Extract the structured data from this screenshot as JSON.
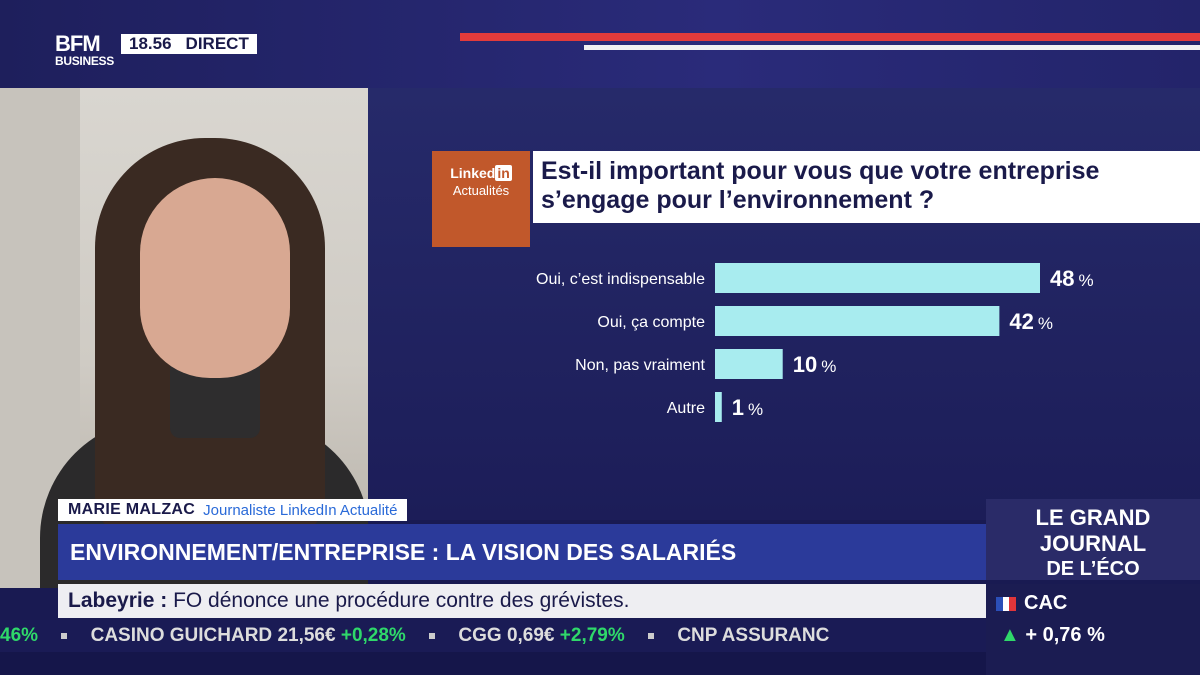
{
  "broadcast": {
    "channel_top": "BFM",
    "channel_bottom": "BUSINESS",
    "time": "18.56",
    "status": "DIRECT"
  },
  "badge": {
    "line1_prefix": "Linked",
    "line1_in": "in",
    "line2": "Actualités"
  },
  "question": {
    "line1": "Est-il important pour vous que votre entreprise",
    "line2": "s’engage pour l’environnement ?"
  },
  "chart_data": {
    "type": "bar",
    "orientation": "horizontal",
    "categories": [
      "Oui, c’est indispensable",
      "Oui, ça compte",
      "Non, pas vraiment",
      "Autre"
    ],
    "values": [
      48,
      42,
      10,
      1
    ],
    "value_suffix": "%",
    "bar_color": "#a8ecef",
    "xlim": [
      0,
      48
    ]
  },
  "lower_third": {
    "name": "MARIE MALZAC",
    "role": "Journaliste LinkedIn Actualité",
    "headline": "ENVIRONNEMENT/ENTREPRISE : LA VISION DES SALARIÉS",
    "news_source": "Labeyrie :",
    "news_text": "FO dénonce une procédure contre des grévistes."
  },
  "market_ticker": {
    "lead": "46%",
    "items": [
      {
        "name": "CASINO GUICHARD",
        "price": "21,56€",
        "change": "+0,28%"
      },
      {
        "name": "CGG",
        "price": "0,69€",
        "change": "+2,79%"
      },
      {
        "name": "CNP ASSURANC",
        "price": "",
        "change": ""
      }
    ]
  },
  "show_logo": {
    "line1": "LE GRAND",
    "line2": "JOURNAL",
    "line3": "DE L’ÉCO"
  },
  "index": {
    "name": "CAC",
    "change": "+ 0,76 %"
  }
}
